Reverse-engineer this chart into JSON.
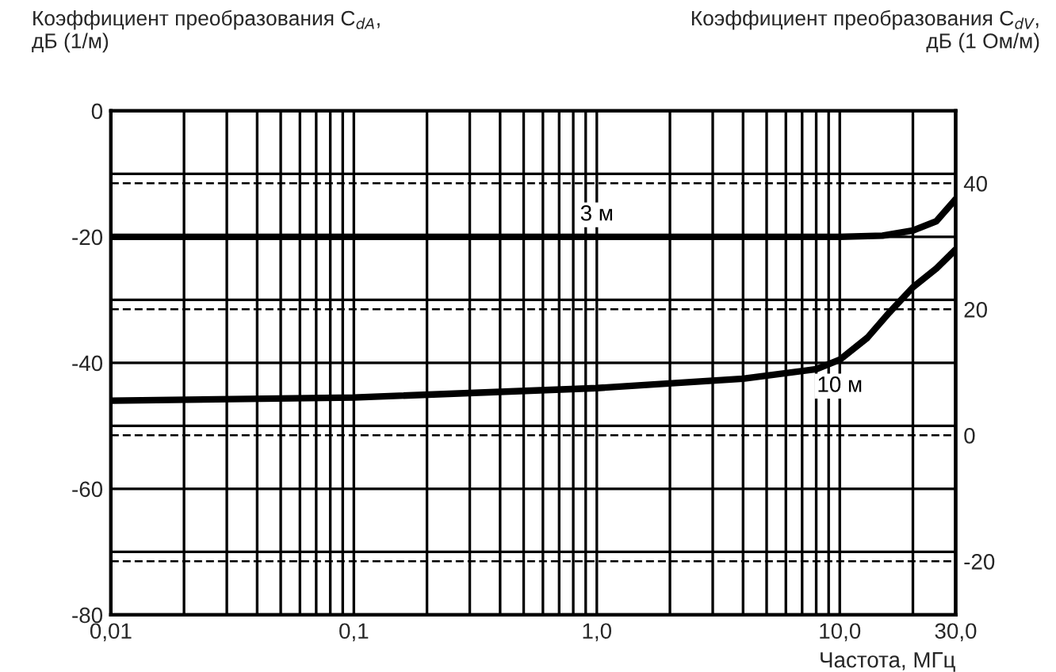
{
  "chart_data": {
    "type": "line",
    "ylabel": "Коэффициент преобразования C$_{dA}$,\nдБ (1/м)",
    "y2label": "Коэффициент преобразования C$_{dV}$,\nдБ (1 Ом/м)",
    "xlabel": "Частота, МГц",
    "log": "x",
    "xlim": [
      0.01,
      30
    ],
    "xticks": [
      {
        "value": 0.01,
        "label": "0,01"
      },
      {
        "value": 0.02,
        "label": null
      },
      {
        "value": 0.03,
        "label": null
      },
      {
        "value": 0.04,
        "label": null
      },
      {
        "value": 0.05,
        "label": null
      },
      {
        "value": 0.06,
        "label": null
      },
      {
        "value": 0.07,
        "label": null
      },
      {
        "value": 0.08,
        "label": null
      },
      {
        "value": 0.09,
        "label": null
      },
      {
        "value": 0.1,
        "label": "0,1"
      },
      {
        "value": 0.2,
        "label": null
      },
      {
        "value": 0.3,
        "label": null
      },
      {
        "value": 0.4,
        "label": null
      },
      {
        "value": 0.5,
        "label": null
      },
      {
        "value": 0.6,
        "label": null
      },
      {
        "value": 0.7,
        "label": null
      },
      {
        "value": 0.8,
        "label": null
      },
      {
        "value": 0.9,
        "label": null
      },
      {
        "value": 1,
        "label": "1,0"
      },
      {
        "value": 2,
        "label": null
      },
      {
        "value": 3,
        "label": null
      },
      {
        "value": 4,
        "label": null
      },
      {
        "value": 5,
        "label": null
      },
      {
        "value": 6,
        "label": null
      },
      {
        "value": 7,
        "label": null
      },
      {
        "value": 8,
        "label": null
      },
      {
        "value": 9,
        "label": null
      },
      {
        "value": 10,
        "label": "10,0"
      },
      {
        "value": 20,
        "label": null
      },
      {
        "value": 30,
        "label": "30,0"
      }
    ],
    "ylim": [
      -80,
      0
    ],
    "yticks": [
      -80,
      {
        "value": -70,
        "label": null
      },
      -60,
      {
        "value": -50,
        "label": null
      },
      -40,
      {
        "value": -30,
        "label": null
      },
      -20,
      {
        "value": -10,
        "label": null
      },
      0
    ],
    "y2lim": [
      -28.5,
      51.5
    ],
    "y2ticks": [
      -20,
      0,
      20,
      40
    ],
    "grid": true,
    "line_style": "solid",
    "marker": "none",
    "series": [
      {
        "name": "3 м",
        "color": "#000000",
        "x": [
          0.01,
          0.1,
          1,
          10,
          15,
          20,
          25,
          30
        ],
        "values": [
          -20,
          -20,
          -20,
          -20,
          -19.8,
          -19,
          -17.5,
          -14
        ]
      },
      {
        "name": "10 м",
        "color": "#000000",
        "x": [
          0.01,
          0.1,
          1,
          4,
          8,
          10,
          13,
          16,
          20,
          25,
          30
        ],
        "values": [
          -46,
          -45.5,
          -44,
          -42.5,
          -41,
          -39.5,
          -36,
          -32,
          -28,
          -25,
          -22
        ]
      }
    ]
  }
}
